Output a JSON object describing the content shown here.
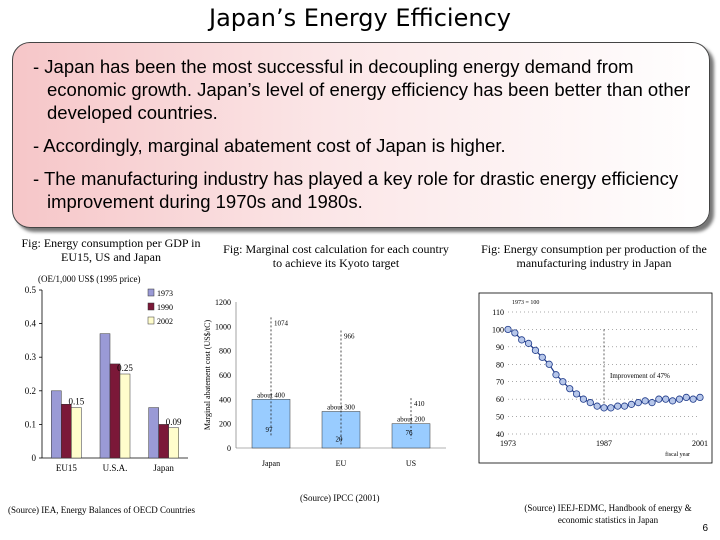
{
  "title": "Japan’s Energy Efficiency",
  "bullets": [
    "- Japan has been the most successful in decoupling energy demand from economic growth. Japan’s level of energy efficiency has been better than other developed countries.",
    "- Accordingly, marginal abatement cost of Japan is higher.",
    "- The manufacturing industry has played a key role for drastic energy efficiency improvement during 1970s and 1980s."
  ],
  "figures": {
    "fig1": {
      "caption": "Fig: Energy consumption per GDP in EU15, US and Japan",
      "unit_label": "(OE/1,000 US$ (1995 price)",
      "source": "(Source) IEA, Energy Balances of OECD Countries"
    },
    "fig2": {
      "caption": "Fig: Marginal cost calculation for each country to achieve its Kyoto target",
      "source": "(Source) IPCC (2001)"
    },
    "fig3": {
      "caption": "Fig: Energy consumption per production of the manufacturing industry in Japan",
      "source": "(Source) IEEJ-EDMC, Handbook of energy & economic statistics in Japan"
    }
  },
  "chart_data": [
    {
      "type": "bar",
      "categories": [
        "EU15",
        "U.S.A.",
        "Japan"
      ],
      "series": [
        {
          "name": "1973",
          "color": "#9a9ad6",
          "values": [
            0.2,
            0.37,
            0.15
          ]
        },
        {
          "name": "1990",
          "color": "#7b1838",
          "values": [
            0.16,
            0.28,
            0.1
          ]
        },
        {
          "name": "2002",
          "color": "#fffdcc",
          "values": [
            0.15,
            0.25,
            0.09
          ]
        }
      ],
      "data_labels": [
        {
          "category": "U.S.A.",
          "series": "2002",
          "text": "0.25"
        },
        {
          "category": "EU15",
          "series": "2002",
          "text": "0.15"
        },
        {
          "category": "Japan",
          "series": "2002",
          "text": "0.09"
        }
      ],
      "yticks": [
        "0",
        "0.1",
        "0.2",
        "0.3",
        "0.4",
        "0.5"
      ],
      "ylim": [
        0,
        0.5
      ]
    },
    {
      "type": "bar",
      "categories": [
        "Japan",
        "EU",
        "US"
      ],
      "series": [
        {
          "name": "Marginal abatement cost",
          "color": "#99ccff",
          "values": [
            400,
            300,
            200
          ]
        }
      ],
      "max_labels": [
        "1074",
        "966",
        "410"
      ],
      "max_values": [
        1074,
        966,
        410
      ],
      "min_labels": [
        "97",
        "20",
        "76"
      ],
      "min_values": [
        97,
        20,
        76
      ],
      "about_labels": [
        "about 400",
        "about 300",
        "about 200"
      ],
      "ylabel": "Marginal abatement cost (US$/tC)",
      "yticks": [
        "0",
        "200",
        "400",
        "600",
        "800",
        "1000",
        "1200"
      ],
      "ylim": [
        0,
        1200
      ]
    },
    {
      "type": "line",
      "x": [
        1973,
        1974,
        1975,
        1976,
        1977,
        1978,
        1979,
        1980,
        1981,
        1982,
        1983,
        1984,
        1985,
        1986,
        1987,
        1988,
        1989,
        1990,
        1991,
        1992,
        1993,
        1994,
        1995,
        1996,
        1997,
        1998,
        1999,
        2000,
        2001
      ],
      "values": [
        100,
        98,
        94,
        92,
        88,
        84,
        80,
        74,
        70,
        66,
        63,
        60,
        58,
        56,
        55,
        55,
        56,
        56,
        57,
        58,
        59,
        58,
        60,
        60,
        59,
        60,
        61,
        60,
        61
      ],
      "title": "1973 = 100",
      "xticks": [
        "1973",
        "1987",
        "2001"
      ],
      "yticks": [
        "40",
        "50",
        "60",
        "70",
        "80",
        "90",
        "100",
        "110"
      ],
      "ylim": [
        40,
        110
      ],
      "annotation": "Improvement of 47%",
      "year_label": "fiscal year"
    }
  ],
  "page_number": "6"
}
